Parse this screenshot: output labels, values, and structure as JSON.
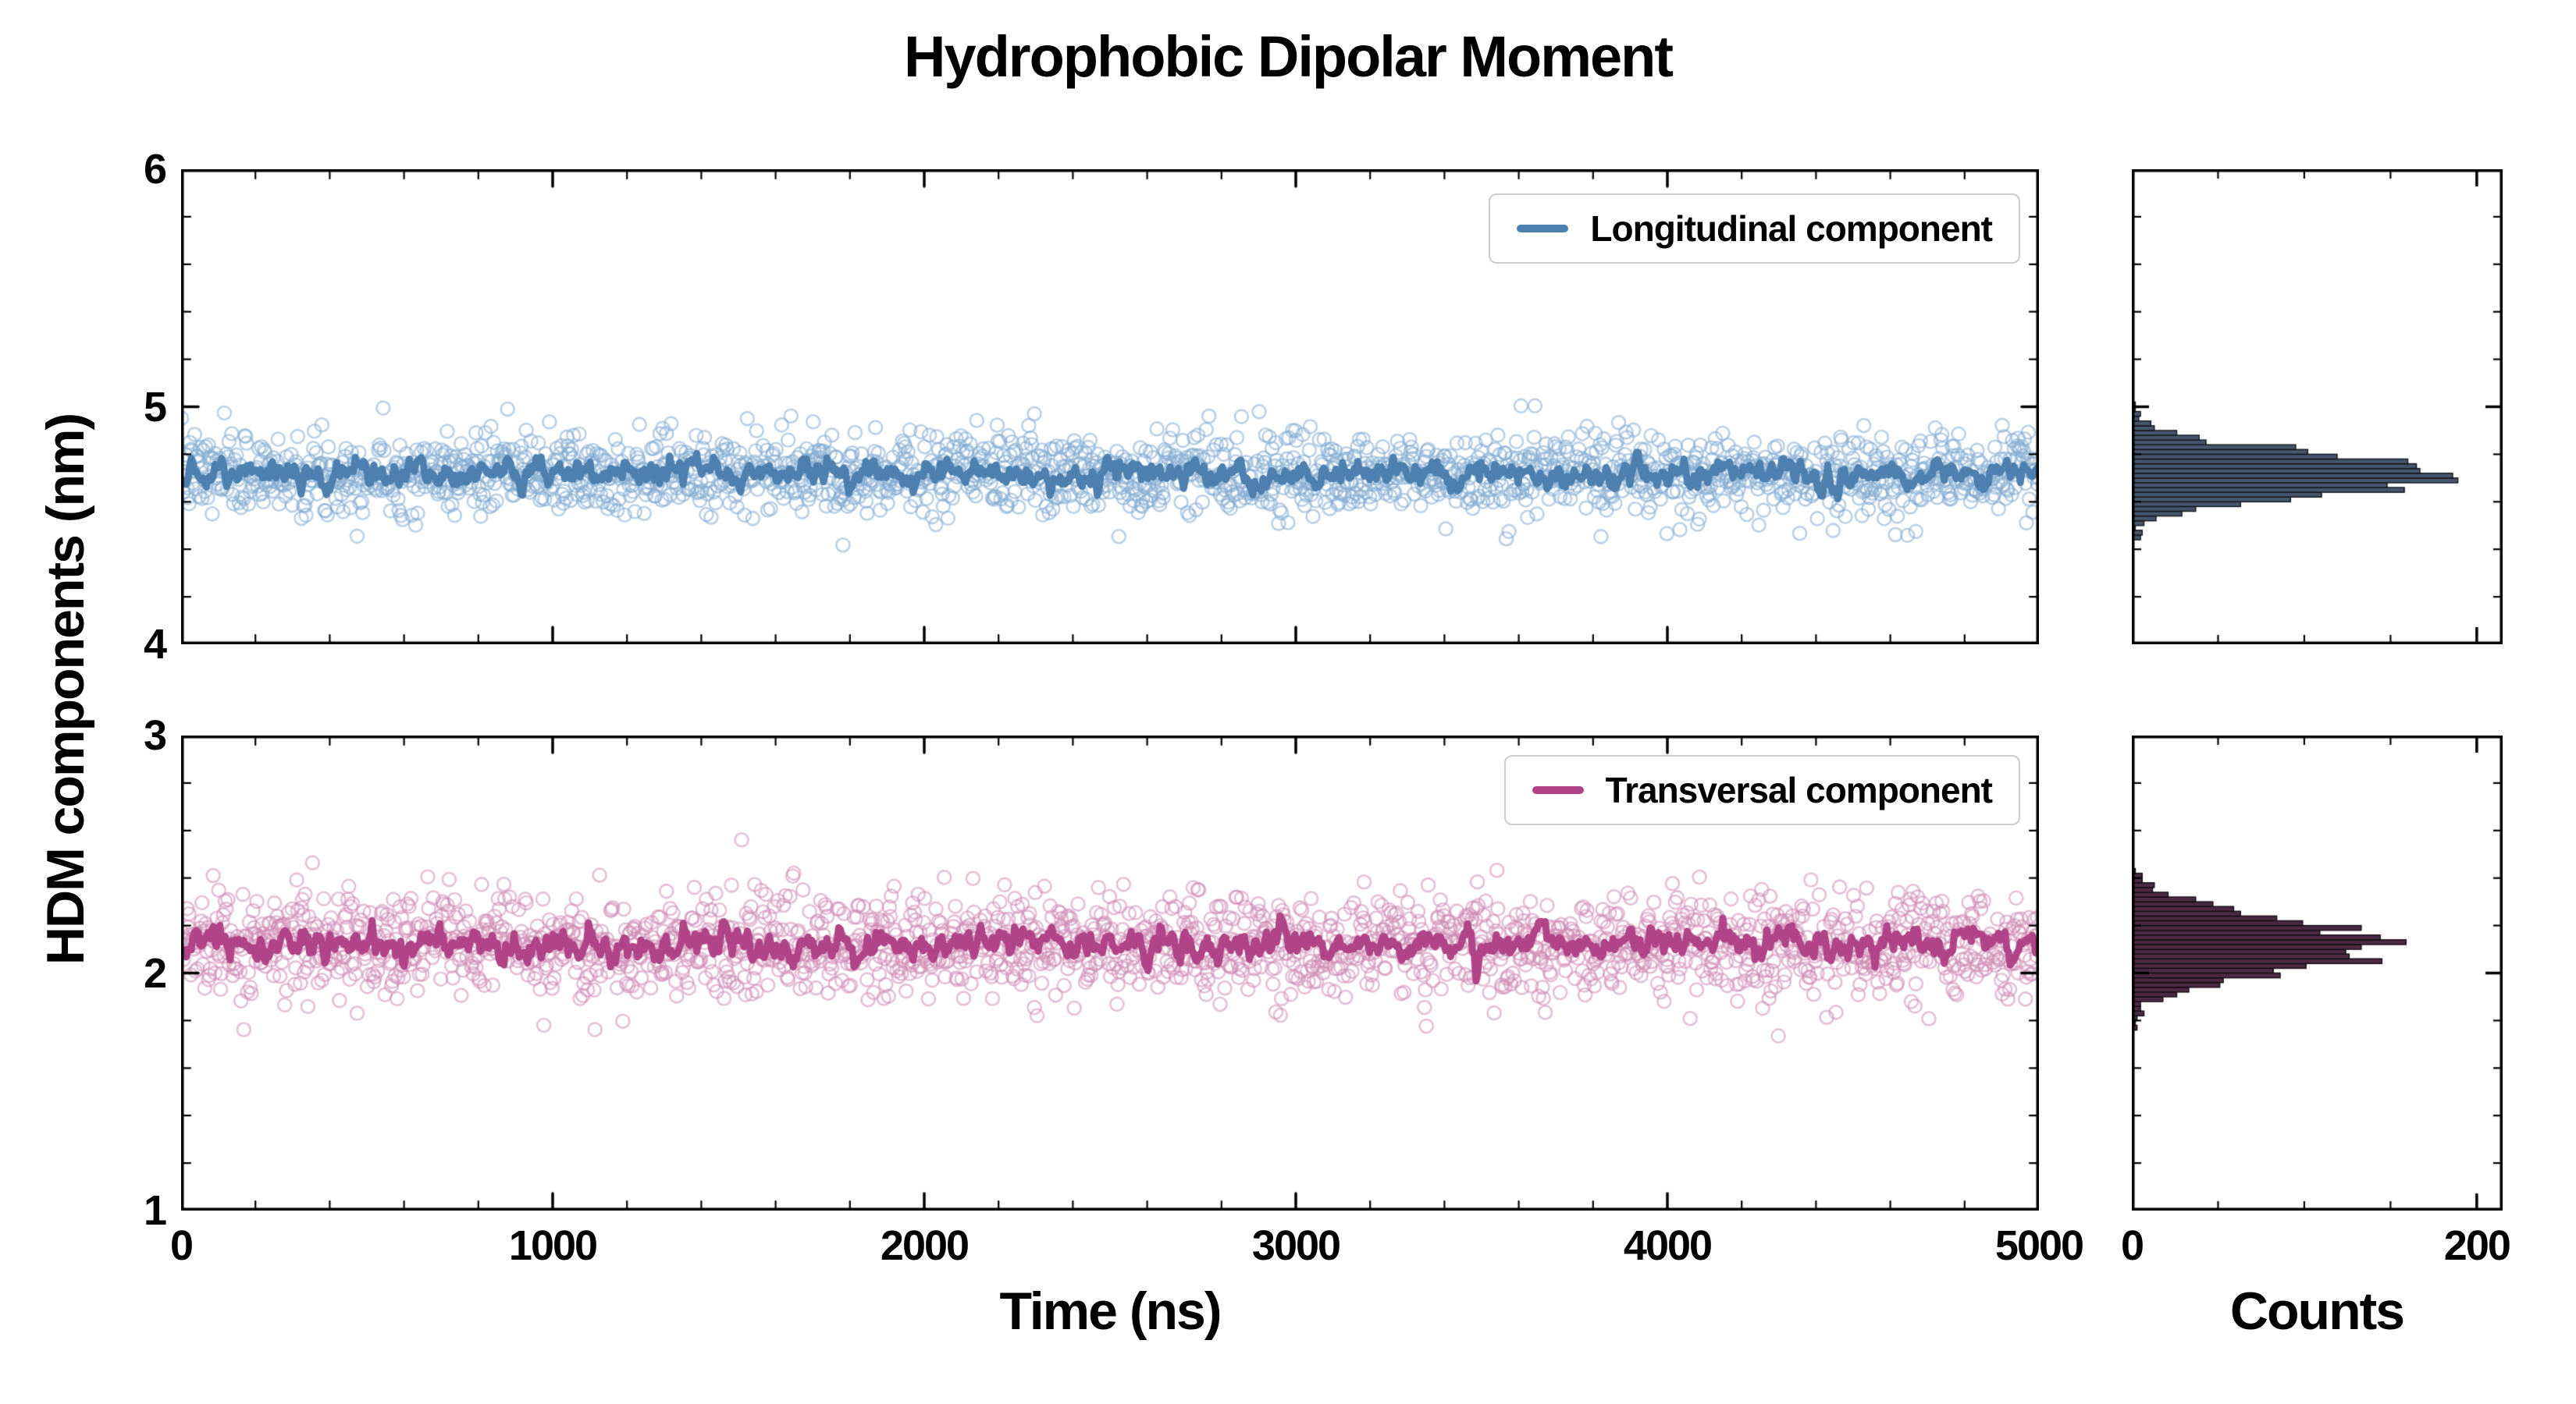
{
  "title": "Hydrophobic Dipolar Moment",
  "axes": {
    "ylabel": "HDM components (nm)",
    "xlabel": "Time (ns)",
    "hist_xlabel": "Counts"
  },
  "rng_seed": 7,
  "chart_data": [
    {
      "type": "scatter",
      "panel": "top",
      "x": {
        "label": "Time (ns)",
        "range": [
          0,
          5000
        ],
        "ticks": [
          0,
          1000,
          2000,
          3000,
          4000,
          5000
        ],
        "minor_step": 200,
        "show_tick_labels": false
      },
      "y": {
        "range": [
          4,
          6
        ],
        "ticks": [
          6,
          5,
          4
        ],
        "minor_step": 0.2
      },
      "series": [
        {
          "name": "Longitudinal component samples",
          "style": "open-circles",
          "color": "#84abd1",
          "mean": 4.72,
          "sd": 0.084,
          "n": 2000
        },
        {
          "name": "Longitudinal component running mean",
          "style": "line",
          "color": "#4d80af",
          "mean": 4.72,
          "sd": 0.03
        }
      ],
      "legend": {
        "label": "Longitudinal component",
        "color": "#4d80af",
        "position": "upper right"
      },
      "histogram": {
        "type": "horizontal-bar",
        "bin_width": 0.02,
        "x_range": [
          0,
          215
        ],
        "x_ticks": [
          0,
          200
        ],
        "x_minor_step": 50,
        "peak_count": 190,
        "fill": "#46566b",
        "edge": "#14181f"
      }
    },
    {
      "type": "scatter",
      "panel": "bottom",
      "x": {
        "label": "Time (ns)",
        "range": [
          0,
          5000
        ],
        "ticks": [
          0,
          1000,
          2000,
          3000,
          4000,
          5000
        ],
        "minor_step": 200,
        "show_tick_labels": true
      },
      "y": {
        "range": [
          1,
          3
        ],
        "ticks": [
          3,
          2,
          1
        ],
        "minor_step": 0.2
      },
      "series": [
        {
          "name": "Transversal component samples",
          "style": "open-circles",
          "color": "#cf8cb7",
          "mean": 2.12,
          "sd": 0.112,
          "n": 2000
        },
        {
          "name": "Transversal component running mean",
          "style": "line",
          "color": "#b04487",
          "mean": 2.12,
          "sd": 0.035
        }
      ],
      "legend": {
        "label": "Transversal component",
        "color": "#b04487",
        "position": "upper right"
      },
      "histogram": {
        "type": "horizontal-bar",
        "bin_width": 0.02,
        "x_range": [
          0,
          215
        ],
        "x_ticks": [
          0,
          200
        ],
        "x_minor_step": 50,
        "peak_count": 150,
        "fill": "#4a2b43",
        "edge": "#170d14"
      }
    }
  ]
}
